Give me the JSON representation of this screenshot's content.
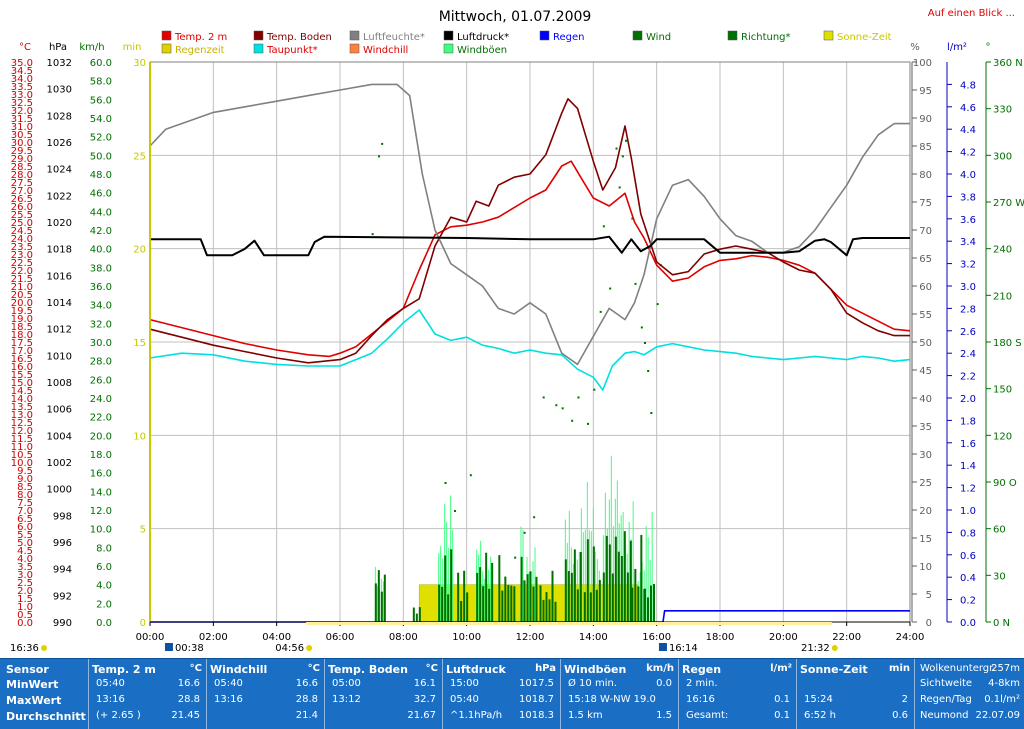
{
  "chart_data": {
    "type": "line",
    "title": "Mittwoch, 01.07.2009",
    "link": "Auf einen Blick ...",
    "left_axes": [
      {
        "unit": "°C",
        "min": 0,
        "max": 35,
        "step": 0.5,
        "color": "#d00000"
      },
      {
        "unit": "hPa",
        "min": 990,
        "max": 1032,
        "step": 2,
        "color": "#000000"
      },
      {
        "unit": "km/h",
        "min": 0,
        "max": 60,
        "step": 2,
        "color": "#007000"
      },
      {
        "unit": "min",
        "min": 0,
        "max": 30,
        "step": 5,
        "color": "#c8c800"
      }
    ],
    "right_axes": [
      {
        "unit": "%",
        "min": 0,
        "max": 100,
        "step": 5,
        "color": "#606060"
      },
      {
        "unit": "l/m²",
        "min": 0,
        "max": 5,
        "step": 0.2,
        "color": "#0000c0"
      },
      {
        "unit": "°",
        "ticks": [
          [
            0,
            "0 N"
          ],
          [
            30,
            "30"
          ],
          [
            60,
            "60"
          ],
          [
            90,
            "90 O"
          ],
          [
            120,
            "120"
          ],
          [
            150,
            "150"
          ],
          [
            180,
            "180 S"
          ],
          [
            210,
            "210"
          ],
          [
            240,
            "240"
          ],
          [
            270,
            "270 W"
          ],
          [
            300,
            "300"
          ],
          [
            330,
            "330"
          ],
          [
            360,
            "360 N"
          ]
        ],
        "color": "#007000"
      }
    ],
    "x_ticks": [
      "00:00",
      "02:00",
      "04:00",
      "06:00",
      "08:00",
      "10:00",
      "12:00",
      "14:00",
      "16:00",
      "18:00",
      "20:00",
      "22:00",
      "24:00"
    ],
    "legend": [
      {
        "label": "Temp. 2 m",
        "color": "#e00000",
        "text": "#e00000"
      },
      {
        "label": "Regenzeit",
        "color": "#e0d000",
        "text": "#c8b400"
      },
      {
        "label": "Temp. Boden",
        "color": "#800000",
        "text": "#800000"
      },
      {
        "label": "Taupunkt*",
        "color": "#00e0e0",
        "text": "#e00000"
      },
      {
        "label": "Luftfeuchte*",
        "color": "#808080",
        "text": "#808080"
      },
      {
        "label": "Windchill",
        "color": "#ff8040",
        "text": "#e00000"
      },
      {
        "label": "Luftdruck*",
        "color": "#000000",
        "text": "#000000"
      },
      {
        "label": "Windböen",
        "color": "#40ff80",
        "text": "#007000"
      },
      {
        "label": "Regen",
        "color": "#0000ff",
        "text": "#0000ff"
      },
      {
        "label": "Wind",
        "color": "#007000",
        "text": "#007000"
      },
      {
        "label": "Richtung*",
        "color": "#007000",
        "text": "#007000"
      },
      {
        "label": "Sonne-Zeit",
        "color": "#e0e000",
        "text": "#c8c800"
      }
    ],
    "series": [
      {
        "name": "Temp. 2 m",
        "color": "#e00000",
        "x": [
          0,
          1,
          2,
          3,
          4,
          5,
          5.67,
          6,
          6.5,
          7,
          7.5,
          8,
          8.5,
          9,
          9.5,
          10,
          10.5,
          11,
          11.5,
          12,
          12.5,
          13,
          13.3,
          13.6,
          14,
          14.5,
          15,
          15.3,
          15.6,
          16,
          16.5,
          17,
          17.5,
          18,
          18.5,
          19,
          19.5,
          20,
          20.5,
          21,
          21.5,
          22,
          22.5,
          23,
          23.5,
          24
        ],
        "y": [
          18.9,
          18.4,
          17.9,
          17.4,
          17.0,
          16.7,
          16.6,
          16.8,
          17.2,
          18.0,
          18.8,
          19.6,
          22.0,
          24.2,
          24.7,
          24.8,
          25.0,
          25.3,
          25.9,
          26.5,
          27.0,
          28.5,
          28.8,
          27.8,
          26.5,
          26.0,
          26.8,
          25.0,
          24.0,
          22.3,
          21.3,
          21.5,
          22.2,
          22.6,
          22.7,
          22.9,
          22.8,
          22.6,
          22.3,
          21.8,
          20.8,
          19.8,
          19.3,
          18.8,
          18.3,
          18.2
        ]
      },
      {
        "name": "Temp. Boden",
        "color": "#800000",
        "x": [
          0,
          1,
          2,
          3,
          4,
          5,
          6,
          6.5,
          7,
          7.5,
          8,
          8.5,
          9,
          9.5,
          10,
          10.3,
          10.7,
          11,
          11.5,
          12,
          12.5,
          13,
          13.2,
          13.5,
          14,
          14.3,
          14.7,
          15,
          15.2,
          15.5,
          16,
          16.5,
          17,
          17.5,
          18,
          18.5,
          19,
          19.5,
          20,
          20.5,
          21,
          21.5,
          22,
          22.5,
          23,
          23.5,
          24
        ],
        "y": [
          18.3,
          17.8,
          17.3,
          16.9,
          16.5,
          16.2,
          16.4,
          16.8,
          17.9,
          18.9,
          19.6,
          20.2,
          23.5,
          25.3,
          25.0,
          26.3,
          26.0,
          27.3,
          27.8,
          28.0,
          29.2,
          31.8,
          32.7,
          32.1,
          28.8,
          27.0,
          28.4,
          31.0,
          29.0,
          25.5,
          22.5,
          21.7,
          21.9,
          23.0,
          23.3,
          23.5,
          23.3,
          23.1,
          22.5,
          22.0,
          21.8,
          20.8,
          19.3,
          18.7,
          18.2,
          17.9,
          17.9
        ]
      },
      {
        "name": "Luftfeuchte*",
        "color": "#808080",
        "x": [
          0,
          0.5,
          1,
          2,
          3,
          4,
          5,
          6,
          7,
          7.8,
          8.2,
          8.6,
          9,
          9.5,
          10,
          10.5,
          11,
          11.5,
          12,
          12.5,
          13,
          13.5,
          14,
          14.5,
          15,
          15.3,
          15.6,
          16,
          16.5,
          17,
          17.5,
          18,
          18.5,
          19,
          19.5,
          20,
          20.5,
          21,
          21.5,
          22,
          22.5,
          23,
          23.5,
          24
        ],
        "y": [
          85,
          88,
          89,
          91,
          92,
          93,
          94,
          95,
          96,
          96,
          94,
          80,
          70,
          64,
          62,
          60,
          56,
          55,
          57,
          55,
          48,
          46,
          51,
          56,
          54,
          57,
          62,
          72,
          78,
          79,
          76,
          72,
          69,
          68,
          66,
          66,
          67,
          70,
          74,
          78,
          83,
          87,
          89,
          89
        ]
      },
      {
        "name": "Taupunkt*",
        "color": "#00e0e0",
        "x": [
          0,
          1,
          2,
          3,
          4,
          5,
          6,
          7,
          7.5,
          8,
          8.5,
          9,
          9.5,
          10,
          10.5,
          11,
          11.5,
          12,
          12.5,
          13,
          13.5,
          14,
          14.3,
          14.6,
          15,
          15.3,
          15.6,
          16,
          16.5,
          17,
          17.5,
          18,
          18.5,
          19,
          19.5,
          20,
          20.5,
          21,
          21.5,
          22,
          22.5,
          23,
          23.5,
          24
        ],
        "y": [
          16.5,
          16.8,
          16.7,
          16.3,
          16.1,
          16.0,
          16.0,
          16.8,
          17.7,
          18.7,
          19.5,
          18.0,
          17.6,
          17.8,
          17.3,
          17.1,
          16.8,
          17.0,
          16.8,
          16.7,
          15.8,
          15.3,
          14.5,
          16.0,
          16.8,
          16.9,
          16.7,
          17.2,
          17.4,
          17.2,
          17.0,
          16.9,
          16.8,
          16.6,
          16.5,
          16.4,
          16.5,
          16.6,
          16.5,
          16.4,
          16.6,
          16.5,
          16.3,
          16.4
        ]
      },
      {
        "name": "Luftdruck*",
        "color": "#000000",
        "x": [
          0,
          1.6,
          1.8,
          2.6,
          3,
          3.3,
          3.6,
          4,
          5,
          5.2,
          5.5,
          10,
          12,
          14,
          14.5,
          14.9,
          15.2,
          15.5,
          15.8,
          16,
          17.5,
          18,
          20,
          20.5,
          21,
          21.3,
          21.5,
          22,
          22.2,
          22.5,
          23,
          24
        ],
        "y": [
          1018.7,
          1018.7,
          1017.5,
          1017.5,
          1018.0,
          1018.6,
          1017.5,
          1017.5,
          1017.5,
          1018.5,
          1018.9,
          1018.8,
          1018.7,
          1018.7,
          1018.9,
          1017.7,
          1018.7,
          1017.8,
          1018.2,
          1018.7,
          1018.7,
          1017.7,
          1017.7,
          1017.8,
          1018.6,
          1018.7,
          1018.5,
          1017.5,
          1018.7,
          1018.8,
          1018.8,
          1018.8
        ]
      },
      {
        "name": "Regen",
        "color": "#0000ff",
        "x": [
          0,
          16.2,
          16.25,
          24
        ],
        "y": [
          0,
          0,
          0.1,
          0.1
        ],
        "axis": "rain"
      }
    ],
    "wind_bars": {
      "color": "#007000",
      "ranges": [
        [
          7.1,
          7.4,
          7.0
        ],
        [
          8.3,
          8.5,
          2.5
        ],
        [
          9.1,
          9.5,
          8.0
        ],
        [
          9.7,
          10.0,
          6.0
        ],
        [
          10.3,
          10.8,
          8.0
        ],
        [
          11.0,
          11.5,
          7.5
        ],
        [
          11.7,
          12.2,
          8.0
        ],
        [
          12.3,
          12.8,
          6.0
        ],
        [
          13.1,
          13.6,
          9.0
        ],
        [
          13.7,
          14.2,
          9.0
        ],
        [
          14.3,
          15.2,
          12.0
        ],
        [
          15.2,
          15.6,
          10.0
        ],
        [
          15.6,
          15.9,
          6.0
        ]
      ]
    },
    "gust_bars": {
      "color": "#40ff80",
      "ranges": [
        [
          7.1,
          7.4,
          10.0
        ],
        [
          9.1,
          9.6,
          14.0
        ],
        [
          10.3,
          10.8,
          12.0
        ],
        [
          11.7,
          12.2,
          12.0
        ],
        [
          13.1,
          14.2,
          15.0
        ],
        [
          14.3,
          14.8,
          18.0
        ],
        [
          14.8,
          15.3,
          19.0
        ],
        [
          15.4,
          15.9,
          12.0
        ]
      ]
    },
    "direction_points": {
      "color": "#007000",
      "points": [
        [
          7.2,
          300
        ],
        [
          7.3,
          308
        ],
        [
          7.0,
          250
        ],
        [
          9.3,
          90
        ],
        [
          9.6,
          72
        ],
        [
          10.1,
          95
        ],
        [
          11.5,
          42
        ],
        [
          11.8,
          58
        ],
        [
          12.1,
          68
        ],
        [
          12.4,
          145
        ],
        [
          12.8,
          140
        ],
        [
          13.0,
          138
        ],
        [
          13.3,
          130
        ],
        [
          13.5,
          145
        ],
        [
          13.8,
          128
        ],
        [
          14.0,
          150
        ],
        [
          14.2,
          200
        ],
        [
          14.5,
          215
        ],
        [
          14.7,
          305
        ],
        [
          14.9,
          300
        ],
        [
          15.0,
          310
        ],
        [
          15.2,
          260
        ],
        [
          15.3,
          218
        ],
        [
          15.5,
          190
        ],
        [
          15.6,
          180
        ],
        [
          15.7,
          162
        ],
        [
          15.8,
          135
        ],
        [
          16.0,
          205
        ],
        [
          16.1,
          230
        ],
        [
          14.3,
          255
        ],
        [
          14.8,
          280
        ]
      ]
    },
    "sun_bar": {
      "color": "#e0e000",
      "x": [
        8.5,
        15.4
      ],
      "value": 2
    },
    "daylight": {
      "sunrise": "04:56",
      "sunset": "21:32",
      "sunrise_h": 4.93,
      "sunset_h": 21.53
    },
    "moon": {
      "rise": "00:38",
      "set": "16:14",
      "rise_h": 0.63,
      "set_h": 16.23
    },
    "left_time": "16:36"
  },
  "table": {
    "row_labels": [
      "Sensor",
      "MinWert",
      "MaxWert",
      "Durchschnitt"
    ],
    "groups": [
      {
        "title": "Temp. 2 m",
        "unit": "°C",
        "cells": [
          [
            "05:40",
            "16.6"
          ],
          [
            "13:16",
            "28.8"
          ],
          [
            "(+ 2.65 )",
            "21.45"
          ]
        ]
      },
      {
        "title": "Windchill",
        "unit": "°C",
        "cells": [
          [
            "05:40",
            "16.6"
          ],
          [
            "13:16",
            "28.8"
          ],
          [
            "",
            "21.4"
          ]
        ]
      },
      {
        "title": "Temp. Boden",
        "unit": "°C",
        "cells": [
          [
            "05:00",
            "16.1"
          ],
          [
            "13:12",
            "32.7"
          ],
          [
            "",
            "21.67"
          ]
        ]
      },
      {
        "title": "Luftdruck",
        "unit": "hPa",
        "cells": [
          [
            "15:00",
            "1017.5"
          ],
          [
            "05:40",
            "1018.7"
          ],
          [
            "^1.1hPa/h",
            "1018.3"
          ]
        ]
      },
      {
        "title": "Windböen",
        "unit": "km/h",
        "cells": [
          [
            "Ø 10 min.",
            "0.0"
          ],
          [
            "15:18  W-NW 19.0",
            ""
          ],
          [
            "1.5 km",
            "1.5"
          ]
        ]
      },
      {
        "title": "Regen",
        "unit": "l/m²",
        "cells": [
          [
            "2 min.",
            ""
          ],
          [
            "16:16",
            "0.1"
          ],
          [
            "Gesamt:",
            "0.1"
          ]
        ]
      },
      {
        "title": "Sonne-Zeit",
        "unit": "min",
        "cells": [
          [
            "",
            ""
          ],
          [
            "15:24",
            "2"
          ],
          [
            "6:52 h",
            "0.6"
          ]
        ]
      }
    ],
    "extra": [
      [
        "Wolkenuntergr.",
        "257m"
      ],
      [
        "Sichtweite",
        "4-8km"
      ],
      [
        "Regen/Tag",
        "0.1l/m²"
      ],
      [
        "Neumond",
        "22.07.09"
      ]
    ]
  }
}
